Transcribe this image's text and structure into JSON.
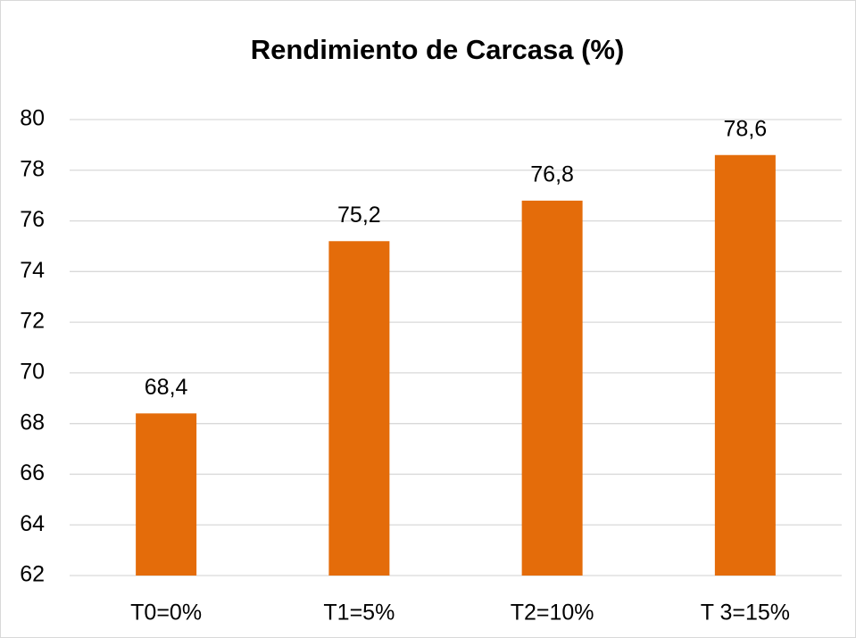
{
  "chart_data": {
    "type": "bar",
    "title": "Rendimiento de Carcasa (%)",
    "categories": [
      "T0=0%",
      "T1=5%",
      "T2=10%",
      "T 3=15%"
    ],
    "values": [
      68.4,
      75.2,
      76.8,
      78.6
    ],
    "value_labels": [
      "68,4",
      "75,2",
      "76,8",
      "78,6"
    ],
    "color": "#e46c0a",
    "ylim": [
      62,
      80
    ],
    "yticks": [
      62,
      64,
      66,
      68,
      70,
      72,
      74,
      76,
      78,
      80
    ],
    "grid": true
  }
}
